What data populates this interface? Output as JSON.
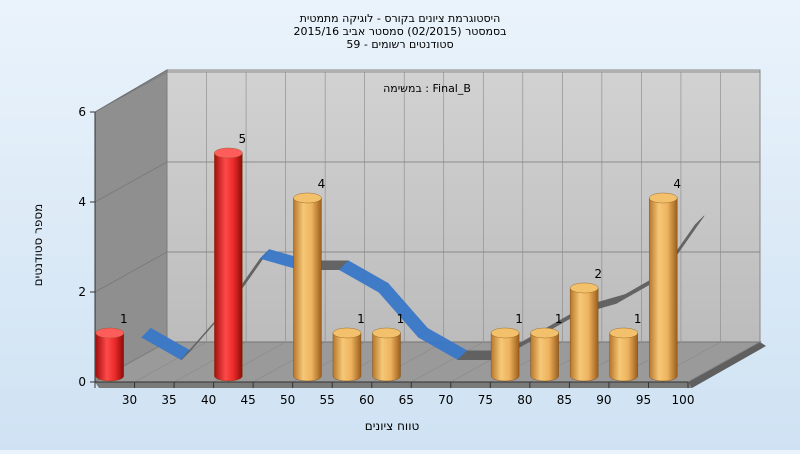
{
  "chart_data": {
    "type": "bar",
    "title_lines": [
      "היסטוגרמת ציונים בקורס - לוגיקה מתמטית",
      "בסמסטר  (02/2015)  סמסטר אביב 2015/16",
      "סטודנטים רשומים - 59"
    ],
    "subtitle": "במשימה : Final_B",
    "xlabel": "טווח ציונים",
    "ylabel": "מספר סטודנטים",
    "ylim": [
      0,
      6
    ],
    "yticks": [
      0,
      2,
      4,
      6
    ],
    "categories": [
      "30",
      "35",
      "40",
      "45",
      "50",
      "55",
      "60",
      "65",
      "70",
      "75",
      "80",
      "85",
      "90",
      "95",
      "100"
    ],
    "values": [
      1,
      0,
      0,
      5,
      0,
      4,
      1,
      1,
      0,
      0,
      1,
      1,
      2,
      1,
      4
    ],
    "bar_colors": [
      "#e02020",
      "",
      "",
      "#e02020",
      "",
      "#e3a04a",
      "#e3a04a",
      "#e3a04a",
      "",
      "",
      "#e3a04a",
      "#e3a04a",
      "#e3a04a",
      "#e3a04a",
      "#e3a04a"
    ],
    "ribbon_colors": {
      "high": "#5f5f5f",
      "low": "#3a78c9"
    },
    "grid": true,
    "legend": "none"
  }
}
